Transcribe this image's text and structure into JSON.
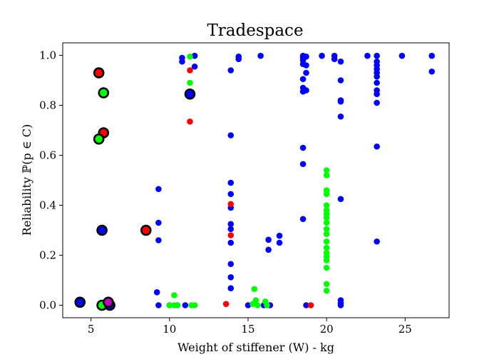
{
  "chart_data": {
    "type": "scatter",
    "title": "Tradespace",
    "xlabel": "Weight of stiffener (W) - kg",
    "ylabel": "Reliability ℙ(p ∈ C)",
    "xlim": [
      3.2,
      27.8
    ],
    "ylim": [
      -0.05,
      1.05
    ],
    "xticks": [
      5,
      10,
      15,
      20,
      25
    ],
    "yticks": [
      0.0,
      0.2,
      0.4,
      0.6,
      0.8,
      1.0
    ],
    "xtick_labels": [
      "5",
      "10",
      "15",
      "20",
      "25"
    ],
    "ytick_labels": [
      "0.0",
      "0.2",
      "0.4",
      "0.6",
      "0.8",
      "1.0"
    ],
    "grid": false,
    "colors": {
      "blue": "#0000ff",
      "red": "#ff0000",
      "green": "#00ff00",
      "magenta": "#c000c0",
      "outline": "#000000"
    },
    "series": [
      {
        "name": "blue",
        "color": "#0000ff",
        "points": [
          [
            9.3,
            0.465
          ],
          [
            9.3,
            0.33
          ],
          [
            9.3,
            0.26
          ],
          [
            9.2,
            0.052
          ],
          [
            9.3,
            0.0
          ],
          [
            10.0,
            0.0
          ],
          [
            10.5,
            0.0
          ],
          [
            11.0,
            0.0
          ],
          [
            10.8,
            0.99
          ],
          [
            10.8,
            0.975
          ],
          [
            11.6,
            0.998
          ],
          [
            11.6,
            0.955
          ],
          [
            13.9,
            0.94
          ],
          [
            13.9,
            0.68
          ],
          [
            13.9,
            0.49
          ],
          [
            13.9,
            0.445
          ],
          [
            13.9,
            0.39
          ],
          [
            13.9,
            0.325
          ],
          [
            13.9,
            0.305
          ],
          [
            13.9,
            0.25
          ],
          [
            13.9,
            0.165
          ],
          [
            13.9,
            0.112
          ],
          [
            13.9,
            0.068
          ],
          [
            14.4,
            0.995
          ],
          [
            14.4,
            0.985
          ],
          [
            15.0,
            0.0
          ],
          [
            15.8,
            0.998
          ],
          [
            16.0,
            0.0
          ],
          [
            16.3,
            0.262
          ],
          [
            16.3,
            0.222
          ],
          [
            16.4,
            0.0
          ],
          [
            17.0,
            0.278
          ],
          [
            17.0,
            0.25
          ],
          [
            18.5,
            0.998
          ],
          [
            18.5,
            0.99
          ],
          [
            18.5,
            0.98
          ],
          [
            18.5,
            0.965
          ],
          [
            18.5,
            0.905
          ],
          [
            18.5,
            0.87
          ],
          [
            18.5,
            0.855
          ],
          [
            18.5,
            0.63
          ],
          [
            18.5,
            0.565
          ],
          [
            18.5,
            0.345
          ],
          [
            18.7,
            0.995
          ],
          [
            18.7,
            0.96
          ],
          [
            18.7,
            0.93
          ],
          [
            18.7,
            0.86
          ],
          [
            18.7,
            0.0
          ],
          [
            19.7,
            0.998
          ],
          [
            20.5,
            0.998
          ],
          [
            20.5,
            0.985
          ],
          [
            20.9,
            0.975
          ],
          [
            20.9,
            0.9
          ],
          [
            20.9,
            0.82
          ],
          [
            20.9,
            0.815
          ],
          [
            20.9,
            0.755
          ],
          [
            20.9,
            0.425
          ],
          [
            20.9,
            0.02
          ],
          [
            20.9,
            0.008
          ],
          [
            20.9,
            0.0
          ],
          [
            22.6,
            0.998
          ],
          [
            23.2,
            0.998
          ],
          [
            23.2,
            0.975
          ],
          [
            23.2,
            0.96
          ],
          [
            23.2,
            0.945
          ],
          [
            23.2,
            0.93
          ],
          [
            23.2,
            0.915
          ],
          [
            23.2,
            0.89
          ],
          [
            23.2,
            0.86
          ],
          [
            23.2,
            0.845
          ],
          [
            23.2,
            0.81
          ],
          [
            23.2,
            0.635
          ],
          [
            23.2,
            0.255
          ],
          [
            24.8,
            0.998
          ],
          [
            26.7,
            0.998
          ],
          [
            26.7,
            0.935
          ]
        ]
      },
      {
        "name": "red",
        "color": "#ff0000",
        "points": [
          [
            11.3,
            0.94
          ],
          [
            11.3,
            0.735
          ],
          [
            13.9,
            0.405
          ],
          [
            13.9,
            0.28
          ],
          [
            13.6,
            0.005
          ],
          [
            19.0,
            0.0
          ]
        ]
      },
      {
        "name": "green",
        "color": "#00ff00",
        "points": [
          [
            11.3,
            0.995
          ],
          [
            11.3,
            0.89
          ],
          [
            10.3,
            0.04
          ],
          [
            10.3,
            0.0
          ],
          [
            10.0,
            0.0
          ],
          [
            10.5,
            0.0
          ],
          [
            11.4,
            0.0
          ],
          [
            11.6,
            0.0
          ],
          [
            15.4,
            0.065
          ],
          [
            15.5,
            0.02
          ],
          [
            15.3,
            0.005
          ],
          [
            15.6,
            0.0
          ],
          [
            16.1,
            0.015
          ],
          [
            16.2,
            0.0
          ],
          [
            20.0,
            0.54
          ],
          [
            20.0,
            0.52
          ],
          [
            20.0,
            0.46
          ],
          [
            20.0,
            0.445
          ],
          [
            20.0,
            0.4
          ],
          [
            20.0,
            0.38
          ],
          [
            20.0,
            0.365
          ],
          [
            20.0,
            0.35
          ],
          [
            20.0,
            0.33
          ],
          [
            20.0,
            0.305
          ],
          [
            20.0,
            0.285
          ],
          [
            20.0,
            0.255
          ],
          [
            20.0,
            0.23
          ],
          [
            20.0,
            0.21
          ],
          [
            20.0,
            0.195
          ],
          [
            20.0,
            0.18
          ],
          [
            20.0,
            0.15
          ],
          [
            20.0,
            0.085
          ],
          [
            20.0,
            0.058
          ]
        ]
      },
      {
        "name": "outlined",
        "highlight": true,
        "points": [
          {
            "x": 5.5,
            "y": 0.93,
            "color": "#ff0000"
          },
          {
            "x": 5.8,
            "y": 0.85,
            "color": "#00ff00"
          },
          {
            "x": 5.8,
            "y": 0.69,
            "color": "#ff0000"
          },
          {
            "x": 5.5,
            "y": 0.665,
            "color": "#00ff00"
          },
          {
            "x": 5.7,
            "y": 0.3,
            "color": "#0000ff"
          },
          {
            "x": 8.5,
            "y": 0.3,
            "color": "#ff0000"
          },
          {
            "x": 11.3,
            "y": 0.845,
            "color": "#0000ff"
          },
          {
            "x": 4.3,
            "y": 0.012,
            "color": "#0000ff"
          },
          {
            "x": 5.7,
            "y": 0.0,
            "color": "#00ff00"
          },
          {
            "x": 6.2,
            "y": 0.0,
            "color": "#0000ff"
          },
          {
            "x": 6.1,
            "y": 0.012,
            "color": "#c000c0"
          }
        ]
      }
    ]
  }
}
